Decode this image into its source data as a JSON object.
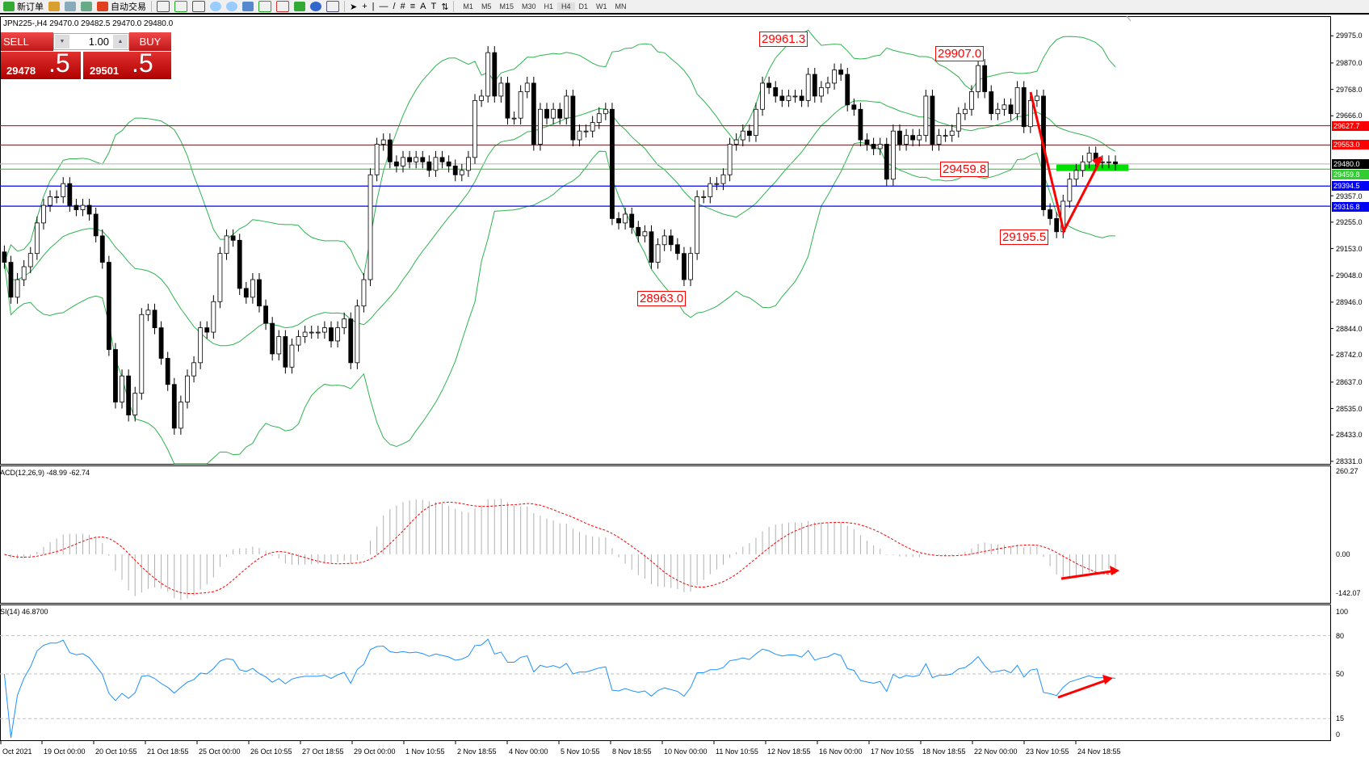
{
  "toolbar": {
    "new_order_label": "新订单",
    "auto_trading_label": "自动交易",
    "timeframes": [
      "M1",
      "M5",
      "M15",
      "M30",
      "H1",
      "H4",
      "D1",
      "W1",
      "MN"
    ],
    "active_timeframe": "H4"
  },
  "symbol_info": "JPN225-,H4  29470.0 29482.5 29470.0 29480.0",
  "one_click": {
    "sell_label": "SELL",
    "buy_label": "BUY",
    "lot": "1.00",
    "sell_price_main": "29478",
    "sell_price_frac": ".5",
    "buy_price_main": "29501",
    "buy_price_frac": ".5"
  },
  "annotations": [
    "29961.3",
    "29907.0",
    "29459.8",
    "29195.5",
    "28963.0"
  ],
  "indicators": {
    "macd_label": "ACD(12,26,9) -48.99 -62.74",
    "rsi_label": "SI(14) 46.8700",
    "macd_axis": [
      "260.27",
      "0.00",
      "-142.07"
    ],
    "rsi_axis": [
      "100",
      "80",
      "50",
      "15",
      "0"
    ]
  },
  "colors": {
    "up": "#ffffff",
    "down": "#000000",
    "bands": "#2eb34f",
    "hline_red": "#ff0000",
    "hline_blue": "#0000ff",
    "hline_green": "#32cd32",
    "rsi": "#1e90ff",
    "macd_signal": "#ff0000",
    "macd_hist": "#b0b0b0",
    "zone": "#00e000"
  },
  "chart_data": {
    "type": "candlestick",
    "symbol": "JPN225-",
    "timeframe": "H4",
    "ylim": [
      28331.0,
      29975.0
    ],
    "price_ticks": [
      "29975.0",
      "29870.0",
      "29768.0",
      "29666.0",
      "29357.0",
      "29255.0",
      "29153.0",
      "29048.0",
      "28946.0",
      "28844.0",
      "28742.0",
      "28637.0",
      "28535.0",
      "28433.0",
      "28331.0"
    ],
    "time_ticks": [
      "Oct 2021",
      "19 Oct 00:00",
      "20 Oct 10:55",
      "21 Oct 18:55",
      "25 Oct 00:00",
      "26 Oct 10:55",
      "27 Oct 18:55",
      "29 Oct 00:00",
      "1 Nov 10:55",
      "2 Nov 18:55",
      "4 Nov 00:00",
      "5 Nov 10:55",
      "8 Nov 18:55",
      "10 Nov 00:00",
      "11 Nov 10:55",
      "12 Nov 18:55",
      "16 Nov 00:00",
      "17 Nov 10:55",
      "18 Nov 18:55",
      "22 Nov 00:00",
      "23 Nov 10:55",
      "24 Nov 18:55"
    ],
    "close": [
      29100,
      28965,
      29033,
      29083,
      29134,
      29252,
      29320,
      29353,
      29353,
      29404,
      29320,
      29303,
      29320,
      29286,
      29202,
      29100,
      28763,
      28560,
      28661,
      28510,
      28594,
      28898,
      28915,
      28847,
      28729,
      28628,
      28459,
      28560,
      28661,
      28712,
      28847,
      28830,
      28948,
      29134,
      29202,
      29185,
      28999,
      28965,
      29033,
      28931,
      28864,
      28746,
      28813,
      28695,
      28780,
      28813,
      28830,
      28830,
      28830,
      28847,
      28796,
      28847,
      28881,
      28712,
      28931,
      29033,
      29438,
      29556,
      29573,
      29488,
      29472,
      29505,
      29488,
      29505,
      29488,
      29455,
      29505,
      29488,
      29472,
      29438,
      29455,
      29505,
      29725,
      29742,
      29910,
      29742,
      29792,
      29657,
      29657,
      29759,
      29792,
      29556,
      29691,
      29657,
      29691,
      29657,
      29742,
      29573,
      29607,
      29607,
      29640,
      29674,
      29691,
      29269,
      29252,
      29286,
      29235,
      29202,
      29218,
      29100,
      29168,
      29202,
      29168,
      29134,
      29033,
      29134,
      29353,
      29353,
      29404,
      29404,
      29438,
      29556,
      29573,
      29607,
      29590,
      29691,
      29792,
      29775,
      29742,
      29725,
      29742,
      29742,
      29725,
      29826,
      29742,
      29775,
      29792,
      29843,
      29826,
      29708,
      29691,
      29573,
      29556,
      29539,
      29556,
      29421,
      29607,
      29556,
      29590,
      29573,
      29590,
      29742,
      29556,
      29590,
      29590,
      29607,
      29674,
      29691,
      29759,
      29860,
      29759,
      29674,
      29691,
      29708,
      29674,
      29775,
      29624,
      29725,
      29742,
      29303,
      29269,
      29218,
      29336,
      29421,
      29455,
      29488,
      29522,
      29488,
      29488,
      29488,
      29480
    ],
    "horizontal_levels": [
      {
        "price": "29627.7",
        "color": "red"
      },
      {
        "price": "29553.0",
        "color": "red"
      },
      {
        "price": "29480.0",
        "color": "gray",
        "bid": true
      },
      {
        "price": "29459.8",
        "color": "green"
      },
      {
        "price": "29394.5",
        "color": "blue"
      },
      {
        "price": "29316.8",
        "color": "blue"
      }
    ],
    "indicators": [
      "Bollinger Bands",
      "MACD(12,26,9)",
      "RSI(14)"
    ]
  }
}
